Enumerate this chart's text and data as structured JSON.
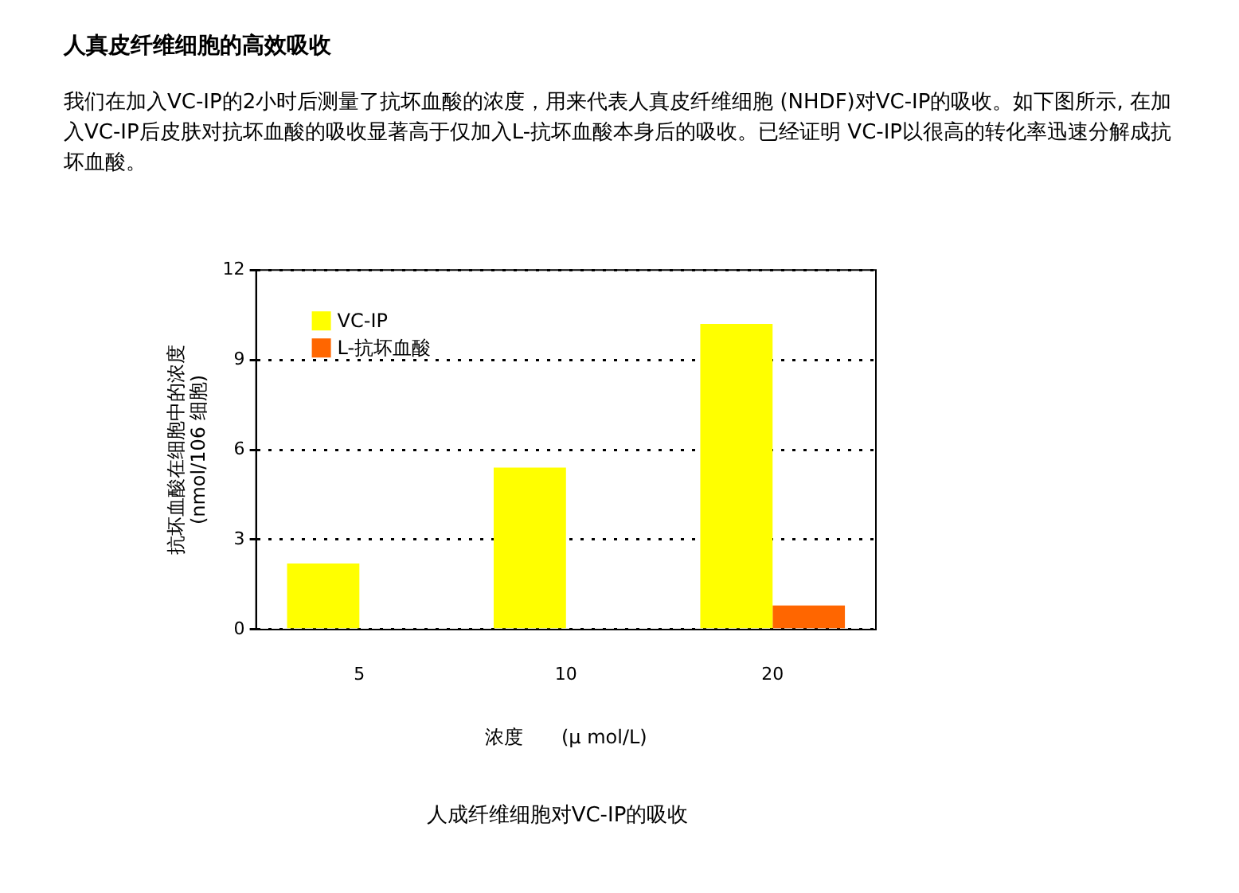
{
  "chart_data": {
    "type": "bar",
    "title": "人真皮纤维细胞的高效吸收",
    "subtitle": "我们在加入VC-IP的2小时后测量了抗坏血酸的浓度，用来代表人真皮纤维细胞 (NHDF)对VC-IP的吸收。如下图所示, 在加入VC-IP后皮肤对抗坏血酸的吸收显著高于仅加入L-抗坏血酸本身后的吸收。已经证明 VC-IP以很高的转化率迅速分解成抗坏血酸。",
    "categories": [
      "5",
      "10",
      "20"
    ],
    "series": [
      {
        "name": "VC-IP",
        "color": "#ffff00",
        "values": [
          2.2,
          5.4,
          10.2
        ]
      },
      {
        "name": "L-抗坏血酸",
        "color": "#ff6600",
        "values": [
          null,
          null,
          0.8
        ]
      }
    ],
    "xlabel": "浓度　　(μ mol/L)",
    "ylabel": "抗坏血酸在细胞中的浓度\n(nmol/106 细胞)",
    "ylim": [
      0,
      12
    ],
    "yticks": [
      0,
      3,
      6,
      9,
      12
    ],
    "grid": "y",
    "legend": "top left",
    "annotations": [
      "人成纤维细胞对VC-IP的吸收"
    ]
  }
}
